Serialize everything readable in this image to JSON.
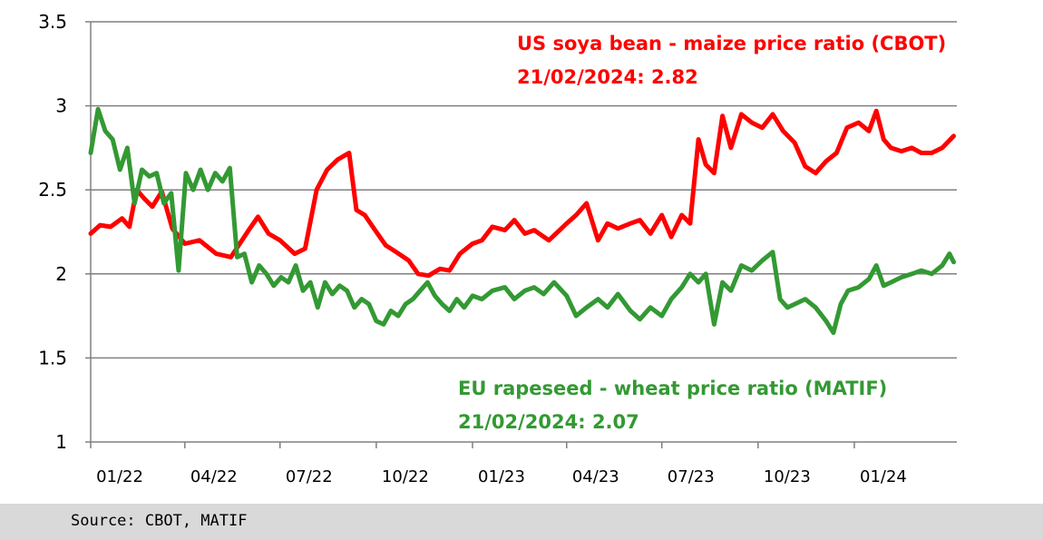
{
  "chart_data": {
    "type": "line",
    "title": "",
    "xlabel": "",
    "ylabel": "",
    "ylim": [
      1,
      3.5
    ],
    "y_ticks": [
      "1",
      "1.5",
      "2",
      "2.5",
      "3",
      "3.5"
    ],
    "x_ticks": [
      "01/22",
      "04/22",
      "07/22",
      "10/22",
      "01/23",
      "04/23",
      "07/23",
      "10/23",
      "01/24"
    ],
    "grid": "horizontal",
    "annotations": {
      "us_title": "US soya bean - maize price ratio (CBOT)",
      "us_value": "21/02/2024: 2.82",
      "eu_title": "EU rapeseed - wheat price ratio (MATIF)",
      "eu_value": "21/02/2024: 2.07"
    },
    "series": [
      {
        "color": "#ff0000",
        "points": [
          [
            "2022-01-01",
            2.24
          ],
          [
            "2022-01-10",
            2.29
          ],
          [
            "2022-01-20",
            2.28
          ],
          [
            "2022-01-31",
            2.33
          ],
          [
            "2022-02-07",
            2.28
          ],
          [
            "2022-02-14",
            2.5
          ],
          [
            "2022-02-21",
            2.45
          ],
          [
            "2022-03-01",
            2.4
          ],
          [
            "2022-03-10",
            2.49
          ],
          [
            "2022-03-20",
            2.27
          ],
          [
            "2022-04-01",
            2.18
          ],
          [
            "2022-04-15",
            2.2
          ],
          [
            "2022-05-01",
            2.12
          ],
          [
            "2022-05-15",
            2.1
          ],
          [
            "2022-06-01",
            2.26
          ],
          [
            "2022-06-10",
            2.34
          ],
          [
            "2022-06-20",
            2.24
          ],
          [
            "2022-07-01",
            2.2
          ],
          [
            "2022-07-15",
            2.12
          ],
          [
            "2022-07-25",
            2.15
          ],
          [
            "2022-08-05",
            2.5
          ],
          [
            "2022-08-15",
            2.62
          ],
          [
            "2022-08-25",
            2.68
          ],
          [
            "2022-09-05",
            2.72
          ],
          [
            "2022-09-12",
            2.38
          ],
          [
            "2022-09-20",
            2.35
          ],
          [
            "2022-10-01",
            2.25
          ],
          [
            "2022-10-10",
            2.17
          ],
          [
            "2022-10-20",
            2.13
          ],
          [
            "2022-11-01",
            2.08
          ],
          [
            "2022-11-10",
            2.0
          ],
          [
            "2022-11-20",
            1.99
          ],
          [
            "2022-12-01",
            2.03
          ],
          [
            "2022-12-10",
            2.02
          ],
          [
            "2022-12-20",
            2.12
          ],
          [
            "2023-01-01",
            2.18
          ],
          [
            "2023-01-10",
            2.2
          ],
          [
            "2023-01-20",
            2.28
          ],
          [
            "2023-02-01",
            2.26
          ],
          [
            "2023-02-10",
            2.32
          ],
          [
            "2023-02-20",
            2.24
          ],
          [
            "2023-03-01",
            2.26
          ],
          [
            "2023-03-15",
            2.2
          ],
          [
            "2023-04-01",
            2.3
          ],
          [
            "2023-04-10",
            2.35
          ],
          [
            "2023-04-20",
            2.42
          ],
          [
            "2023-05-01",
            2.2
          ],
          [
            "2023-05-10",
            2.3
          ],
          [
            "2023-05-20",
            2.27
          ],
          [
            "2023-06-01",
            2.3
          ],
          [
            "2023-06-10",
            2.32
          ],
          [
            "2023-06-20",
            2.24
          ],
          [
            "2023-07-01",
            2.35
          ],
          [
            "2023-07-10",
            2.22
          ],
          [
            "2023-07-20",
            2.35
          ],
          [
            "2023-07-28",
            2.3
          ],
          [
            "2023-08-05",
            2.8
          ],
          [
            "2023-08-12",
            2.65
          ],
          [
            "2023-08-20",
            2.6
          ],
          [
            "2023-08-28",
            2.94
          ],
          [
            "2023-09-05",
            2.75
          ],
          [
            "2023-09-15",
            2.95
          ],
          [
            "2023-09-25",
            2.9
          ],
          [
            "2023-10-05",
            2.87
          ],
          [
            "2023-10-15",
            2.95
          ],
          [
            "2023-10-25",
            2.85
          ],
          [
            "2023-11-05",
            2.78
          ],
          [
            "2023-11-15",
            2.64
          ],
          [
            "2023-11-25",
            2.6
          ],
          [
            "2023-12-05",
            2.67
          ],
          [
            "2023-12-15",
            2.72
          ],
          [
            "2023-12-25",
            2.87
          ],
          [
            "2024-01-05",
            2.9
          ],
          [
            "2024-01-15",
            2.85
          ],
          [
            "2024-01-22",
            2.97
          ],
          [
            "2024-01-29",
            2.8
          ],
          [
            "2024-02-05",
            2.75
          ],
          [
            "2024-02-15",
            2.73
          ],
          [
            "2024-02-25",
            2.75
          ],
          [
            "2024-03-05",
            2.72
          ],
          [
            "2024-03-15",
            2.72
          ],
          [
            "2024-03-25",
            2.75
          ],
          [
            "2024-04-05",
            2.82
          ]
        ]
      },
      {
        "color": "#339933",
        "points": [
          [
            "2022-01-01",
            2.72
          ],
          [
            "2022-01-08",
            2.98
          ],
          [
            "2022-01-15",
            2.85
          ],
          [
            "2022-01-22",
            2.8
          ],
          [
            "2022-01-29",
            2.62
          ],
          [
            "2022-02-05",
            2.75
          ],
          [
            "2022-02-12",
            2.42
          ],
          [
            "2022-02-19",
            2.62
          ],
          [
            "2022-02-26",
            2.58
          ],
          [
            "2022-03-05",
            2.6
          ],
          [
            "2022-03-12",
            2.42
          ],
          [
            "2022-03-19",
            2.48
          ],
          [
            "2022-03-26",
            2.02
          ],
          [
            "2022-04-02",
            2.6
          ],
          [
            "2022-04-09",
            2.5
          ],
          [
            "2022-04-16",
            2.62
          ],
          [
            "2022-04-23",
            2.5
          ],
          [
            "2022-04-30",
            2.6
          ],
          [
            "2022-05-07",
            2.55
          ],
          [
            "2022-05-14",
            2.63
          ],
          [
            "2022-05-21",
            2.1
          ],
          [
            "2022-05-28",
            2.12
          ],
          [
            "2022-06-04",
            1.95
          ],
          [
            "2022-06-11",
            2.05
          ],
          [
            "2022-06-18",
            2.0
          ],
          [
            "2022-06-25",
            1.93
          ],
          [
            "2022-07-02",
            1.98
          ],
          [
            "2022-07-09",
            1.95
          ],
          [
            "2022-07-16",
            2.05
          ],
          [
            "2022-07-23",
            1.9
          ],
          [
            "2022-07-30",
            1.95
          ],
          [
            "2022-08-06",
            1.8
          ],
          [
            "2022-08-13",
            1.95
          ],
          [
            "2022-08-20",
            1.88
          ],
          [
            "2022-08-27",
            1.93
          ],
          [
            "2022-09-03",
            1.9
          ],
          [
            "2022-09-10",
            1.8
          ],
          [
            "2022-09-17",
            1.85
          ],
          [
            "2022-09-24",
            1.82
          ],
          [
            "2022-10-01",
            1.72
          ],
          [
            "2022-10-08",
            1.7
          ],
          [
            "2022-10-15",
            1.78
          ],
          [
            "2022-10-22",
            1.75
          ],
          [
            "2022-10-29",
            1.82
          ],
          [
            "2022-11-05",
            1.85
          ],
          [
            "2022-11-12",
            1.9
          ],
          [
            "2022-11-19",
            1.95
          ],
          [
            "2022-11-26",
            1.87
          ],
          [
            "2022-12-03",
            1.82
          ],
          [
            "2022-12-10",
            1.78
          ],
          [
            "2022-12-17",
            1.85
          ],
          [
            "2022-12-24",
            1.8
          ],
          [
            "2023-01-01",
            1.87
          ],
          [
            "2023-01-10",
            1.85
          ],
          [
            "2023-01-20",
            1.9
          ],
          [
            "2023-02-01",
            1.92
          ],
          [
            "2023-02-10",
            1.85
          ],
          [
            "2023-02-20",
            1.9
          ],
          [
            "2023-03-01",
            1.92
          ],
          [
            "2023-03-10",
            1.88
          ],
          [
            "2023-03-20",
            1.95
          ],
          [
            "2023-04-01",
            1.87
          ],
          [
            "2023-04-10",
            1.75
          ],
          [
            "2023-04-20",
            1.8
          ],
          [
            "2023-05-01",
            1.85
          ],
          [
            "2023-05-10",
            1.8
          ],
          [
            "2023-05-20",
            1.88
          ],
          [
            "2023-06-01",
            1.78
          ],
          [
            "2023-06-10",
            1.73
          ],
          [
            "2023-06-20",
            1.8
          ],
          [
            "2023-07-01",
            1.75
          ],
          [
            "2023-07-10",
            1.85
          ],
          [
            "2023-07-20",
            1.92
          ],
          [
            "2023-07-28",
            2.0
          ],
          [
            "2023-08-05",
            1.95
          ],
          [
            "2023-08-12",
            2.0
          ],
          [
            "2023-08-20",
            1.7
          ],
          [
            "2023-08-28",
            1.95
          ],
          [
            "2023-09-05",
            1.9
          ],
          [
            "2023-09-15",
            2.05
          ],
          [
            "2023-09-25",
            2.02
          ],
          [
            "2023-10-05",
            2.08
          ],
          [
            "2023-10-15",
            2.13
          ],
          [
            "2023-10-22",
            1.85
          ],
          [
            "2023-10-29",
            1.8
          ],
          [
            "2023-11-05",
            1.82
          ],
          [
            "2023-11-15",
            1.85
          ],
          [
            "2023-11-25",
            1.8
          ],
          [
            "2023-12-05",
            1.72
          ],
          [
            "2023-12-12",
            1.65
          ],
          [
            "2023-12-19",
            1.82
          ],
          [
            "2023-12-26",
            1.9
          ],
          [
            "2024-01-05",
            1.92
          ],
          [
            "2024-01-15",
            1.97
          ],
          [
            "2024-01-22",
            2.05
          ],
          [
            "2024-01-29",
            1.93
          ],
          [
            "2024-02-05",
            1.95
          ],
          [
            "2024-02-15",
            1.98
          ],
          [
            "2024-02-25",
            2.0
          ],
          [
            "2024-03-05",
            2.02
          ],
          [
            "2024-03-15",
            2.0
          ],
          [
            "2024-03-25",
            2.05
          ],
          [
            "2024-04-01",
            2.12
          ],
          [
            "2024-04-05",
            2.07
          ]
        ]
      }
    ]
  },
  "source": "Source: CBOT, MATIF"
}
